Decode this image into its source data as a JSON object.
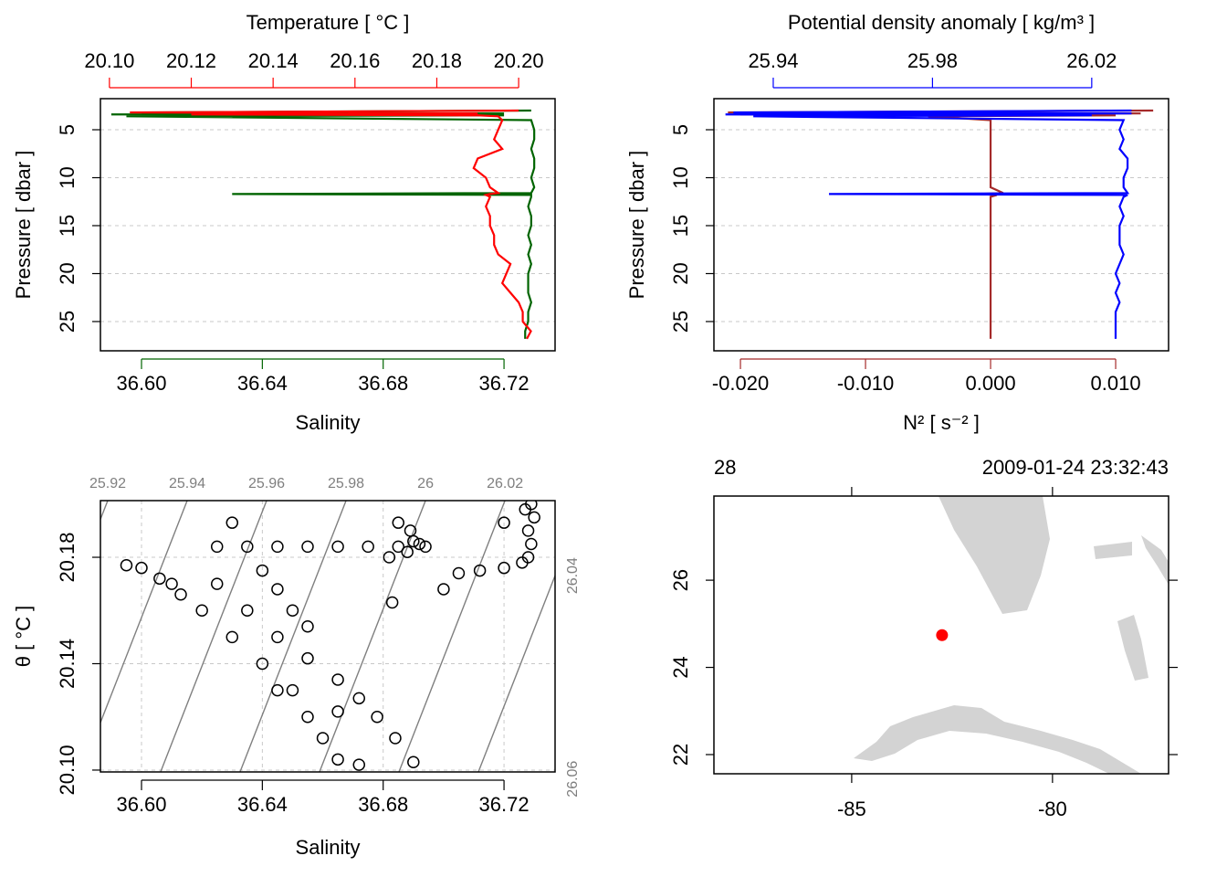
{
  "chart_data": [
    {
      "type": "profile",
      "y_label": "Pressure [ dbar ]",
      "ylim": [
        28.05,
        1.76
      ],
      "yticks": [
        5,
        10,
        15,
        20,
        25
      ],
      "grid": true,
      "y": [
        3.0,
        3.2,
        3.3,
        3.4,
        3.5,
        3.6,
        4,
        5,
        6,
        7,
        8,
        9,
        10,
        11,
        11.6,
        11.7,
        11.8,
        12,
        13,
        14,
        15,
        16,
        17,
        18,
        19,
        20,
        21,
        22,
        23,
        24,
        25,
        26,
        26.8
      ],
      "series": [
        {
          "name": "Temperature [ °C ]",
          "color": "#ff0000",
          "axis": "x2",
          "values": [
            20.2,
            20.105,
            20.19,
            20.12,
            20.19,
            20.195,
            20.196,
            20.195,
            20.194,
            20.196,
            20.19,
            20.189,
            20.192,
            20.193,
            20.195,
            20.193,
            20.192,
            20.193,
            20.192,
            20.193,
            20.193,
            20.194,
            20.194,
            20.195,
            20.198,
            20.197,
            20.196,
            20.198,
            20.2,
            20.201,
            20.201,
            20.203,
            20.202
          ]
        },
        {
          "name": "Salinity",
          "color": "#006400",
          "axis": "x",
          "values": [
            36.729,
            36.6,
            36.72,
            36.59,
            36.72,
            36.595,
            36.729,
            36.73,
            36.73,
            36.729,
            36.73,
            36.73,
            36.729,
            36.73,
            36.729,
            36.63,
            36.729,
            36.729,
            36.728,
            36.729,
            36.729,
            36.728,
            36.729,
            36.728,
            36.729,
            36.728,
            36.728,
            36.728,
            36.729,
            36.728,
            36.728,
            36.727,
            36.727
          ]
        }
      ],
      "xlim": [
        36.5864,
        36.7369
      ],
      "xticks": [
        {
          "value": 36.6,
          "label": "36.60"
        },
        {
          "value": 36.64,
          "label": "36.64"
        },
        {
          "value": 36.68,
          "label": "36.68"
        },
        {
          "value": 36.72,
          "label": "36.72"
        }
      ],
      "x2lim": [
        20.0978,
        20.2089
      ],
      "x2ticks": [
        {
          "value": 20.1,
          "label": "20.10"
        },
        {
          "value": 20.12,
          "label": "20.12"
        },
        {
          "value": 20.14,
          "label": "20.14"
        },
        {
          "value": 20.16,
          "label": "20.16"
        },
        {
          "value": 20.18,
          "label": "20.18"
        },
        {
          "value": 20.2,
          "label": "20.20"
        }
      ]
    },
    {
      "type": "profile",
      "y_label": "Pressure [ dbar ]",
      "ylim": [
        28.05,
        1.76
      ],
      "yticks": [
        5,
        10,
        15,
        20,
        25
      ],
      "grid": true,
      "y": [
        3.0,
        3.2,
        3.3,
        3.4,
        3.5,
        3.6,
        4,
        5,
        6,
        7,
        8,
        9,
        10,
        11,
        11.6,
        11.7,
        11.8,
        12,
        13,
        14,
        15,
        16,
        17,
        18,
        19,
        20,
        21,
        22,
        23,
        24,
        25,
        26,
        26.8
      ],
      "series": [
        {
          "name": "Potential density anomaly [ kg/m³ ]",
          "color": "#0000ff",
          "axis": "x2",
          "values": [
            26.03,
            25.93,
            26.03,
            25.928,
            26.02,
            25.935,
            26.028,
            26.027,
            26.028,
            26.027,
            26.029,
            26.029,
            26.028,
            26.028,
            26.029,
            25.954,
            26.029,
            26.028,
            26.027,
            26.028,
            26.027,
            26.027,
            26.027,
            26.028,
            26.027,
            26.026,
            26.027,
            26.026,
            26.027,
            26.026,
            26.026,
            26.026,
            26.026
          ]
        },
        {
          "name": "N² [ s⁻² ]",
          "color": "#a52a2a",
          "axis": "x",
          "values": [
            0.013,
            -0.021,
            0.012,
            -0.02,
            0.01,
            -0.005,
            0.0,
            0.0,
            0.0,
            0.0,
            0.0,
            0.0,
            0.0,
            0.0,
            0.001,
            -0.001,
            0.0005,
            0.0,
            0.0,
            0.0,
            0.0,
            0.0,
            0.0,
            0.0,
            0.0,
            0.0,
            0.0,
            0.0,
            0.0,
            0.0,
            0.0,
            0.0,
            0.0
          ]
        }
      ],
      "xlim": [
        -0.02212,
        0.01423
      ],
      "xticks": [
        {
          "value": -0.02,
          "label": "-0.020"
        },
        {
          "value": -0.01,
          "label": "-0.010"
        },
        {
          "value": 0,
          "label": "0.000"
        },
        {
          "value": 0.01,
          "label": "0.010"
        }
      ],
      "x2lim": [
        25.9251,
        26.0393
      ],
      "x2ticks": [
        {
          "value": 25.94,
          "label": "25.94"
        },
        {
          "value": 25.98,
          "label": "25.98"
        },
        {
          "value": 26.02,
          "label": "26.02"
        }
      ]
    },
    {
      "type": "scatter",
      "x_label": "Salinity",
      "y_label": "θ [ °C ]",
      "grid": true,
      "x": [
        36.6,
        36.61,
        36.62,
        36.63,
        36.64,
        36.65,
        36.655,
        36.66,
        36.665,
        36.672,
        36.625,
        36.635,
        36.645,
        36.655,
        36.665,
        36.672,
        36.678,
        36.684,
        36.69,
        36.64,
        36.645,
        36.65,
        36.655,
        36.625,
        36.635,
        36.645,
        36.655,
        36.665,
        36.675,
        36.685,
        36.682,
        36.688,
        36.69,
        36.692,
        36.694,
        36.689,
        36.705,
        36.712,
        36.72,
        36.726,
        36.728,
        36.729,
        36.728,
        36.73,
        36.729,
        36.727,
        36.63,
        36.685,
        36.72,
        36.683,
        36.7,
        36.665,
        36.645,
        36.613,
        36.595,
        36.606
      ],
      "y": [
        20.176,
        20.17,
        20.16,
        20.15,
        20.14,
        20.13,
        20.12,
        20.112,
        20.104,
        20.102,
        20.17,
        20.16,
        20.15,
        20.142,
        20.134,
        20.127,
        20.12,
        20.112,
        20.103,
        20.175,
        20.168,
        20.16,
        20.154,
        20.184,
        20.184,
        20.184,
        20.184,
        20.184,
        20.184,
        20.184,
        20.18,
        20.182,
        20.186,
        20.185,
        20.184,
        20.19,
        20.174,
        20.175,
        20.176,
        20.178,
        20.18,
        20.185,
        20.19,
        20.195,
        20.2,
        20.198,
        20.193,
        20.193,
        20.193,
        20.163,
        20.168,
        20.122,
        20.13,
        20.166,
        20.177,
        20.172
      ],
      "xlim": [
        36.5864,
        36.7369
      ],
      "xticks": [
        {
          "value": 36.6,
          "label": "36.60"
        },
        {
          "value": 36.64,
          "label": "36.64"
        },
        {
          "value": 36.68,
          "label": "36.68"
        },
        {
          "value": 36.72,
          "label": "36.72"
        }
      ],
      "ylim": [
        20.0993,
        20.2013
      ],
      "yticks": [
        {
          "value": 20.1,
          "label": "20.10"
        },
        {
          "value": 20.14,
          "label": "20.14"
        },
        {
          "value": 20.18,
          "label": "20.18"
        }
      ],
      "isopycnals": [
        25.92,
        25.94,
        25.96,
        25.98,
        26,
        26.02,
        26.04,
        26.06
      ]
    },
    {
      "type": "map",
      "xlim": [
        -88.43,
        -77.11
      ],
      "ylim": [
        21.56,
        27.93
      ],
      "xticks": [
        -85,
        -80
      ],
      "yticks": [
        22,
        24,
        26
      ],
      "station": {
        "lon": -82.75,
        "lat": 24.74,
        "color": "#ff0000"
      },
      "top_left_label": "28",
      "top_right_label": "2009-01-24 23:32:43"
    }
  ]
}
